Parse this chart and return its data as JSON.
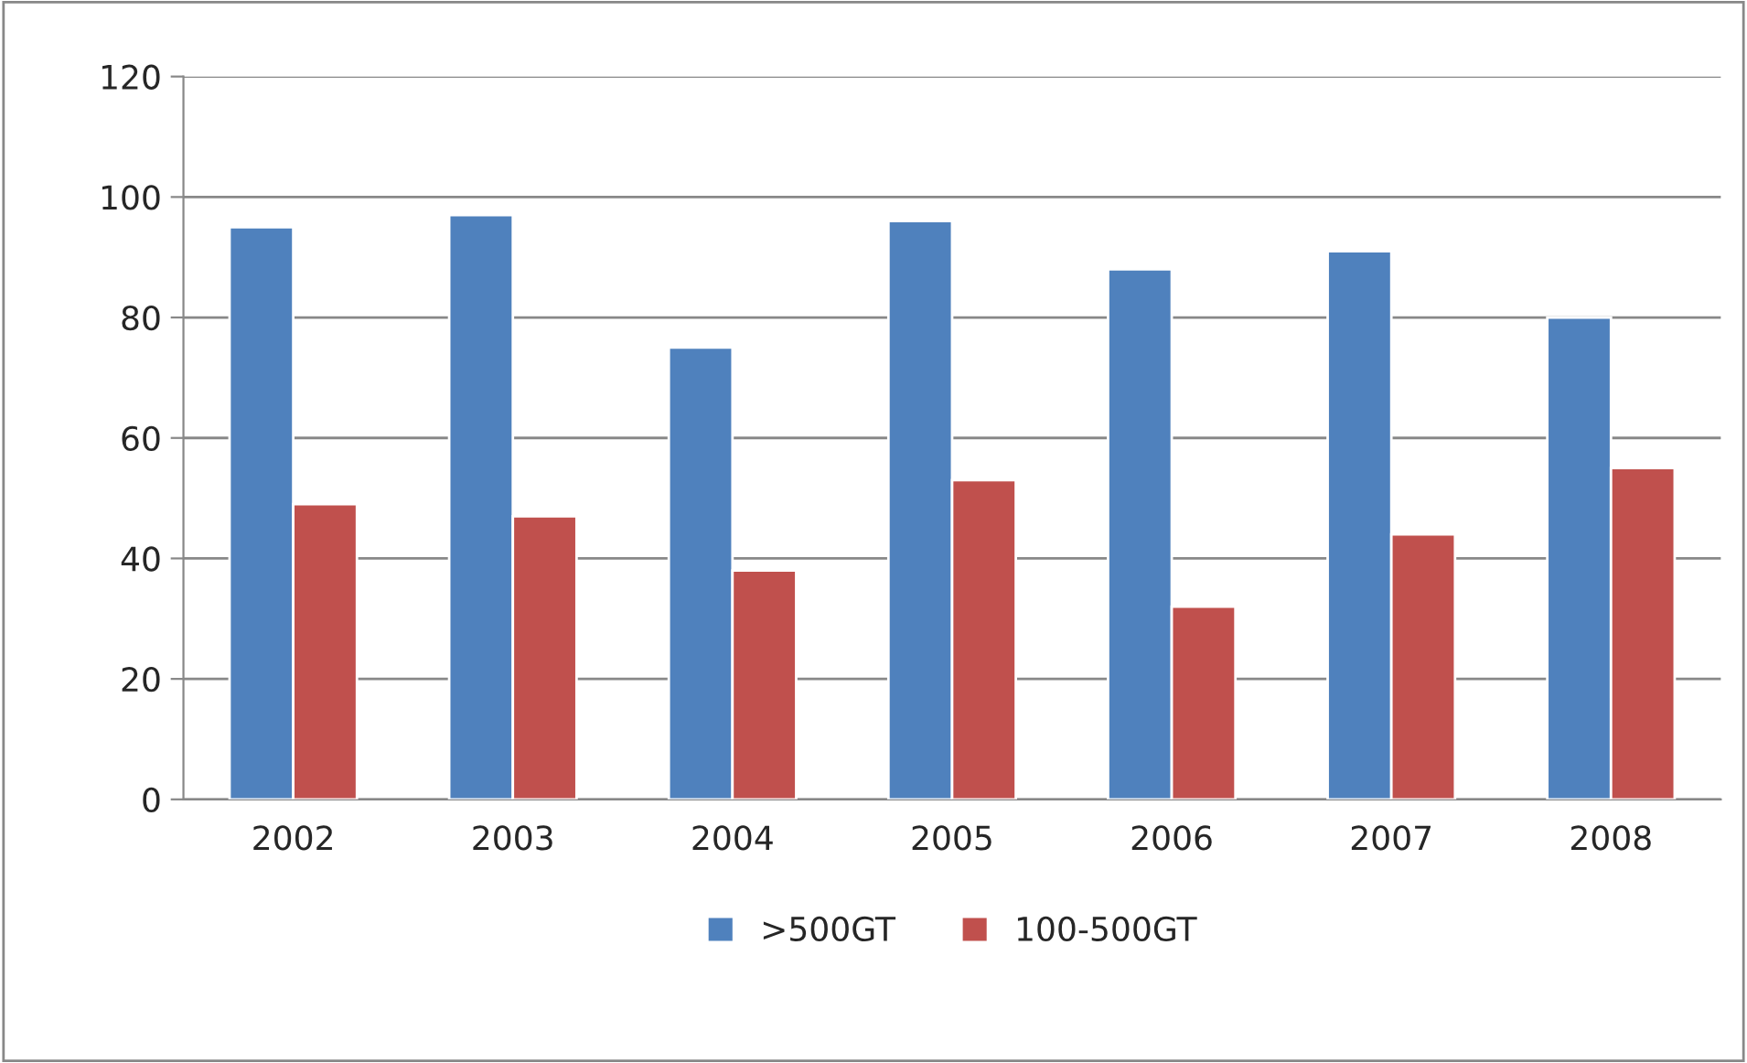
{
  "chart_data": {
    "type": "bar",
    "categories": [
      "2002",
      "2003",
      "2004",
      "2005",
      "2006",
      "2007",
      "2008"
    ],
    "series": [
      {
        "name": ">500GT",
        "color": "#4f81bd",
        "values": [
          95,
          97,
          75,
          96,
          88,
          91,
          80
        ]
      },
      {
        "name": "100-500GT",
        "color": "#c0504d",
        "values": [
          49,
          47,
          38,
          53,
          32,
          44,
          55
        ]
      }
    ],
    "ylim": [
      0,
      120
    ],
    "yticks": [
      0,
      20,
      40,
      60,
      80,
      100,
      120
    ],
    "grid": "y",
    "legend": "bottom"
  }
}
